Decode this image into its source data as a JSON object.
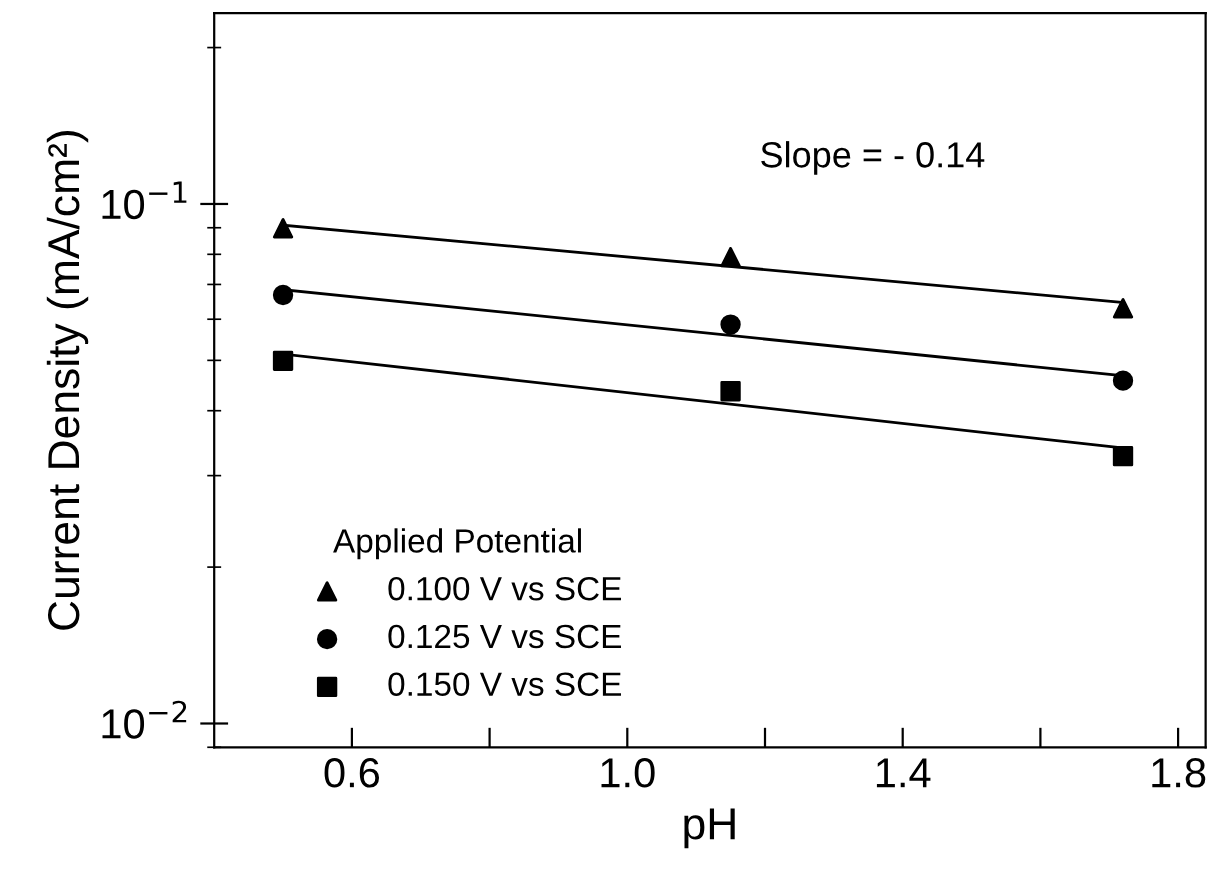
{
  "chart_data": {
    "type": "scatter",
    "xlabel": "pH",
    "ylabel": "Current Density (mA/cm²)",
    "legend_title": "Applied Potential",
    "legend": "bottom left",
    "log": "y",
    "grid": false,
    "xlim": [
      0.4,
      1.84
    ],
    "xticks": [
      0.6,
      {
        "value": 0.8,
        "label": null
      },
      {
        "value": 1.0,
        "label": "1.0"
      },
      {
        "value": 1.2,
        "label": null
      },
      1.4,
      {
        "value": 1.6,
        "label": null
      },
      1.8
    ],
    "ylim": [
      0.009,
      0.233
    ],
    "yticks": [
      {
        "value": 0.01,
        "label": "10$^{−2}$"
      },
      {
        "value": 0.1,
        "label": "10$^{−1}$"
      }
    ],
    "annotations": [
      "Slope = - 0.14"
    ],
    "series": [
      {
        "name": "0.100 V vs SCE",
        "marker": "triangle",
        "color": "#000000",
        "x": [
          0.5,
          1.15,
          1.72
        ],
        "values": [
          0.0898,
          0.079,
          0.063
        ]
      },
      {
        "name": "0.125 V vs SCE",
        "marker": "circle",
        "color": "#000000",
        "x": [
          0.5,
          1.15,
          1.72
        ],
        "values": [
          0.0668,
          0.0586,
          0.0457
        ]
      },
      {
        "name": "0.150 V vs SCE",
        "marker": "square",
        "color": "#000000",
        "x": [
          0.5,
          1.15,
          1.72
        ],
        "values": [
          0.0499,
          0.0436,
          0.0327
        ]
      },
      {
        "type": "line",
        "marker": "none",
        "line_style": "solid",
        "color": "#000000",
        "x": [
          0.5,
          1.72
        ],
        "values": [
          0.091,
          0.0646
        ]
      },
      {
        "type": "line",
        "marker": "none",
        "line_style": "solid",
        "color": "#000000",
        "x": [
          0.5,
          1.72
        ],
        "values": [
          0.0684,
          0.0467
        ]
      },
      {
        "type": "line",
        "marker": "none",
        "line_style": "solid",
        "color": "#000000",
        "x": [
          0.5,
          1.72
        ],
        "values": [
          0.0514,
          0.0339
        ]
      }
    ]
  }
}
